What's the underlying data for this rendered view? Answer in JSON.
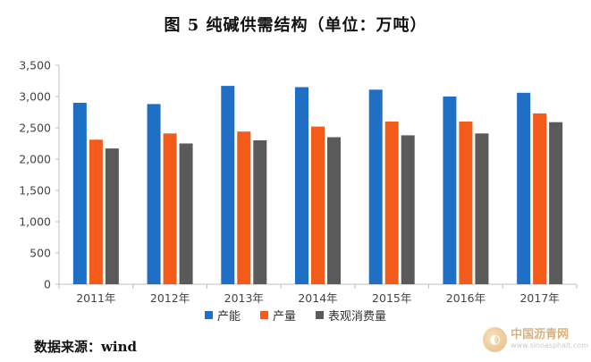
{
  "title": "图 5   纯碱供需结构（单位：万吨）",
  "source_note": "数据来源：wind",
  "watermark": {
    "main": "中国沥青网",
    "sub": "www.sinoasphalt.com"
  },
  "colors": {
    "series": [
      "#1f6fc5",
      "#f25b1a",
      "#5a5a5a"
    ],
    "axis": "#bfbfbf"
  },
  "chart_data": {
    "type": "bar",
    "title": "图 5   纯碱供需结构（单位：万吨）",
    "xlabel": "",
    "ylabel": "",
    "categories": [
      "2011年",
      "2012年",
      "2013年",
      "2014年",
      "2015年",
      "2016年",
      "2017年"
    ],
    "series": [
      {
        "name": "产能",
        "values": [
          2900,
          2880,
          3170,
          3150,
          3110,
          3000,
          3060
        ]
      },
      {
        "name": "产量",
        "values": [
          2310,
          2410,
          2440,
          2520,
          2600,
          2600,
          2730
        ]
      },
      {
        "name": "表观消费量",
        "values": [
          2170,
          2250,
          2300,
          2350,
          2380,
          2410,
          2590
        ]
      }
    ],
    "ylim": [
      0,
      3500
    ],
    "yticks": [
      0,
      500,
      1000,
      1500,
      2000,
      2500,
      3000,
      3500
    ],
    "ytick_labels": [
      "0",
      "500",
      "1,000",
      "1,500",
      "2,000",
      "2,500",
      "3,000",
      "3,500"
    ],
    "grid": false,
    "legend_position": "bottom"
  }
}
